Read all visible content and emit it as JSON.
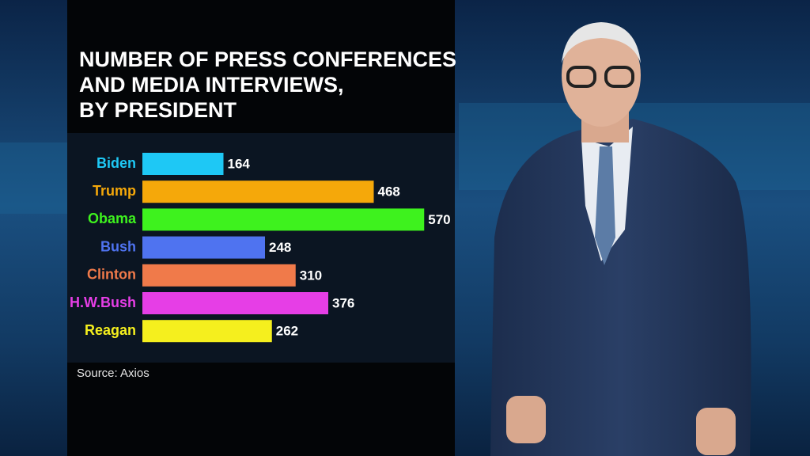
{
  "chart_data": {
    "type": "bar",
    "title": [
      "NUMBER OF PRESS CONFERENCES",
      "AND MEDIA INTERVIEWS,",
      "BY PRESIDENT"
    ],
    "categories": [
      "Biden",
      "Trump",
      "Obama",
      "Bush",
      "Clinton",
      "H.W.Bush",
      "Reagan"
    ],
    "values": [
      164,
      468,
      570,
      248,
      310,
      376,
      262
    ],
    "colors": [
      "#1ec8f5",
      "#f5a80a",
      "#3ef21e",
      "#4f73f0",
      "#f07a4a",
      "#e63ee6",
      "#f5ef1e"
    ],
    "source": "Source: Axios"
  }
}
